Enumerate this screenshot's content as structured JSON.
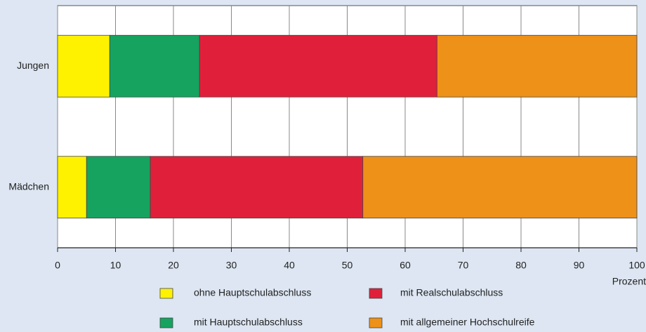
{
  "chart_data": {
    "type": "bar",
    "orientation": "horizontal",
    "stacked": true,
    "categories": [
      "Jungen",
      "Mädchen"
    ],
    "series": [
      {
        "name": "ohne Hauptschulabschluss",
        "color": "#fff200",
        "values": [
          9,
          5
        ]
      },
      {
        "name": "mit Hauptschulabschluss",
        "color": "#16a35f",
        "values": [
          15.5,
          11
        ]
      },
      {
        "name": "mit Realschulabschluss",
        "color": "#e0203a",
        "values": [
          41,
          36.7
        ]
      },
      {
        "name": "mit allgemeiner Hochschulreife",
        "color": "#ee9118",
        "values": [
          34.5,
          47.3
        ]
      }
    ],
    "xlabel": "Prozent",
    "xlim": [
      0,
      100
    ],
    "xticks": [
      0,
      10,
      20,
      30,
      40,
      50,
      60,
      70,
      80,
      90,
      100
    ],
    "grid": true
  }
}
